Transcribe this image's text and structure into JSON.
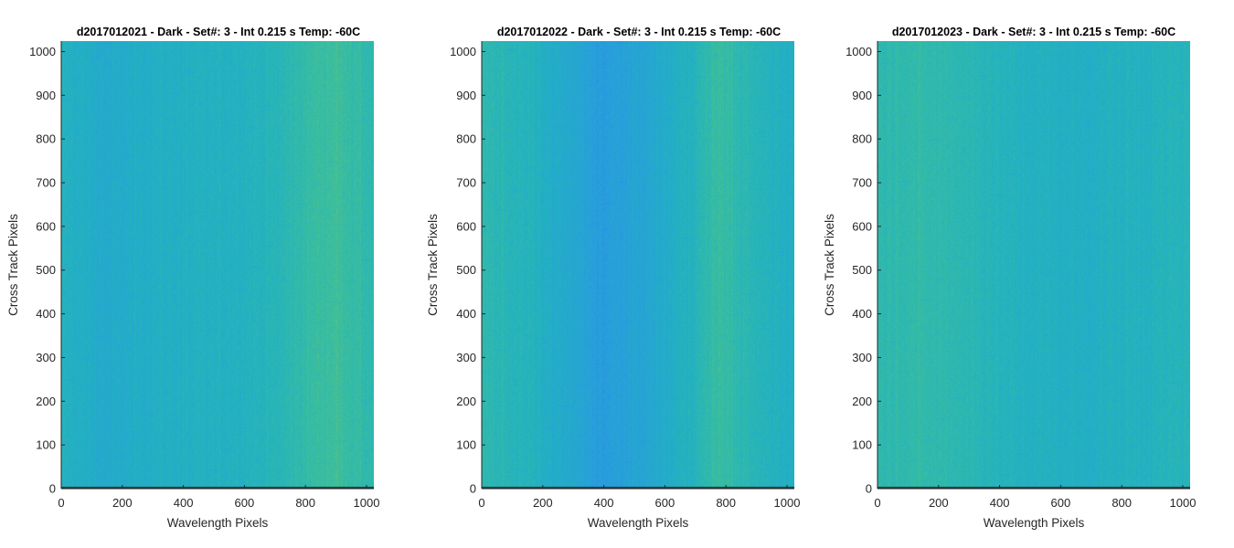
{
  "chart_data": [
    {
      "type": "heatmap",
      "title": "d2017012021 - Dark - Set#: 3 - Int 0.215 s Temp: -60C",
      "xlabel": "Wavelength Pixels",
      "ylabel": "Cross Track Pixels",
      "xlim": [
        0,
        1024
      ],
      "ylim": [
        0,
        1024
      ],
      "xticks": [
        "0",
        "200",
        "400",
        "600",
        "800",
        "1000"
      ],
      "yticks": [
        "0",
        "100",
        "200",
        "300",
        "400",
        "500",
        "600",
        "700",
        "800",
        "900",
        "1000"
      ],
      "column_profile": [
        {
          "x": 0,
          "v": 0.44
        },
        {
          "x": 150,
          "v": 0.38
        },
        {
          "x": 300,
          "v": 0.42
        },
        {
          "x": 500,
          "v": 0.43
        },
        {
          "x": 700,
          "v": 0.46
        },
        {
          "x": 820,
          "v": 0.54
        },
        {
          "x": 900,
          "v": 0.57
        },
        {
          "x": 1024,
          "v": 0.5
        }
      ]
    },
    {
      "type": "heatmap",
      "title": "d2017012022 - Dark - Set#: 3 - Int 0.215 s Temp: -60C",
      "xlabel": "Wavelength Pixels",
      "ylabel": "Cross Track Pixels",
      "xlim": [
        0,
        1024
      ],
      "ylim": [
        0,
        1024
      ],
      "xticks": [
        "0",
        "200",
        "400",
        "600",
        "800",
        "1000"
      ],
      "yticks": [
        "0",
        "100",
        "200",
        "300",
        "400",
        "500",
        "600",
        "700",
        "800",
        "900",
        "1000"
      ],
      "column_profile": [
        {
          "x": 0,
          "v": 0.5
        },
        {
          "x": 150,
          "v": 0.45
        },
        {
          "x": 300,
          "v": 0.36
        },
        {
          "x": 400,
          "v": 0.3
        },
        {
          "x": 550,
          "v": 0.36
        },
        {
          "x": 700,
          "v": 0.46
        },
        {
          "x": 780,
          "v": 0.55
        },
        {
          "x": 900,
          "v": 0.46
        },
        {
          "x": 1024,
          "v": 0.42
        }
      ]
    },
    {
      "type": "heatmap",
      "title": "d2017012023 - Dark - Set#: 3 - Int 0.215 s Temp: -60C",
      "xlabel": "Wavelength Pixels",
      "ylabel": "Cross Track Pixels",
      "xlim": [
        0,
        1024
      ],
      "ylim": [
        0,
        1024
      ],
      "xticks": [
        "0",
        "200",
        "400",
        "600",
        "800",
        "1000"
      ],
      "yticks": [
        "0",
        "100",
        "200",
        "300",
        "400",
        "500",
        "600",
        "700",
        "800",
        "900",
        "1000"
      ],
      "column_profile": [
        {
          "x": 0,
          "v": 0.5
        },
        {
          "x": 100,
          "v": 0.52
        },
        {
          "x": 250,
          "v": 0.5
        },
        {
          "x": 450,
          "v": 0.44
        },
        {
          "x": 650,
          "v": 0.42
        },
        {
          "x": 850,
          "v": 0.44
        },
        {
          "x": 1024,
          "v": 0.46
        }
      ]
    }
  ],
  "colormap": "parula",
  "colors": {
    "parula_stops": [
      "#0a4ad8",
      "#1a78e6",
      "#2a9be0",
      "#22b1c2",
      "#3cbf9c",
      "#86c567",
      "#c8c33c",
      "#f7d32a"
    ],
    "axis": "#262626",
    "bottom_row": "#1c3b38"
  }
}
